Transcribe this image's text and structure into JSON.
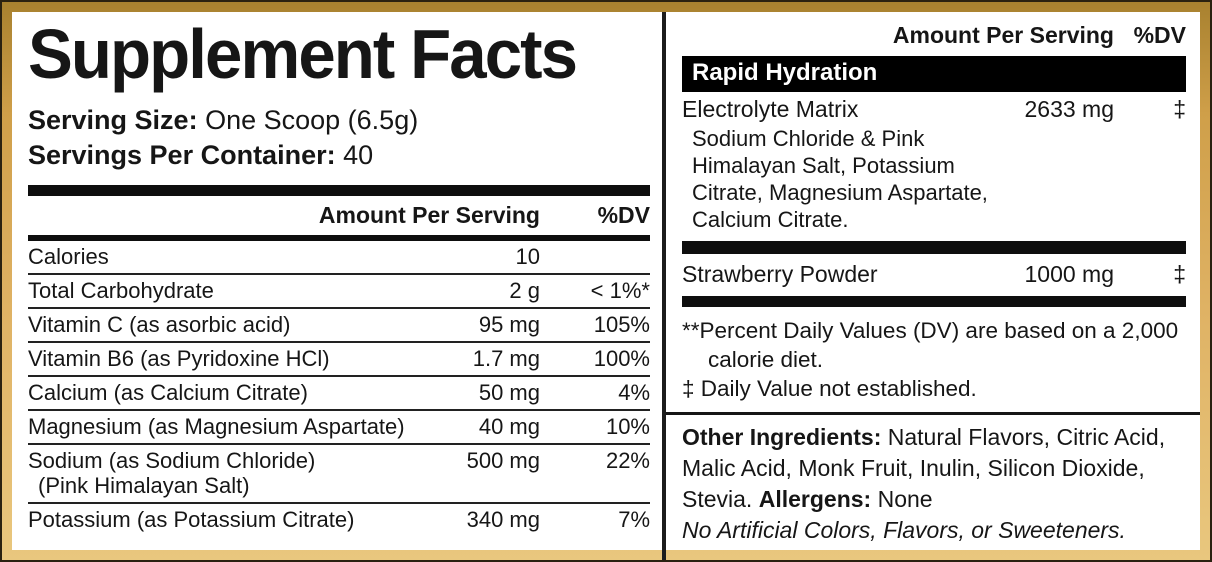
{
  "colors": {
    "frame_gold": "#DFB264",
    "frame_outline": "#2A2110",
    "text": "#161616",
    "banner_bg": "#000000",
    "banner_text": "#FFFFFF"
  },
  "header": {
    "title": "Supplement Facts",
    "serving_size_label": "Serving Size:",
    "serving_size_value": "One Scoop (6.5g)",
    "servings_label": "Servings Per Container:",
    "servings_value": "40"
  },
  "left_table": {
    "col_amount": "Amount Per Serving",
    "col_dv": "%DV",
    "rows": [
      {
        "name": "Calories",
        "amount": "10",
        "dv": ""
      },
      {
        "name": "Total Carbohydrate",
        "amount": "2 g",
        "dv": "< 1%*"
      },
      {
        "name": "Vitamin C (as asorbic acid)",
        "amount": "95 mg",
        "dv": "105%"
      },
      {
        "name": "Vitamin B6 (as Pyridoxine HCl)",
        "amount": "1.7 mg",
        "dv": "100%"
      },
      {
        "name": "Calcium (as Calcium Citrate)",
        "amount": "50 mg",
        "dv": "4%"
      },
      {
        "name": "Magnesium (as Magnesium Aspartate)",
        "amount": "40 mg",
        "dv": "10%"
      },
      {
        "name": "Sodium (as Sodium Chloride)",
        "sub": "(Pink Himalayan Salt)",
        "amount": "500 mg",
        "dv": "22%"
      },
      {
        "name": "Potassium (as Potassium Citrate)",
        "amount": "340 mg",
        "dv": "7%"
      }
    ]
  },
  "right_table": {
    "col_amount": "Amount Per Serving",
    "col_dv": "%DV",
    "banner": "Rapid Hydration",
    "electrolyte": {
      "name": "Electrolyte Matrix",
      "amount": "2633 mg",
      "dv": "‡",
      "sub_lines": [
        "Sodium Chloride & Pink",
        "Himalayan Salt, Potassium",
        "Citrate, Magnesium Aspartate,",
        "Calcium Citrate."
      ]
    },
    "strawberry": {
      "name": "Strawberry Powder",
      "amount": "1000 mg",
      "dv": "‡"
    },
    "footnote_dv": "**Percent Daily Values (DV) are based on a 2,000 calorie diet.",
    "footnote_dagger": "‡ Daily Value not established."
  },
  "other_ingredients": {
    "label": "Other Ingredients:",
    "value": "Natural Flavors, Citric Acid, Malic Acid, Monk Fruit, Inulin, Silicon Dioxide, Stevia.",
    "allergens_label": "Allergens:",
    "allergens_value": "None",
    "claim": "No Artificial Colors, Flavors, or Sweeteners."
  }
}
